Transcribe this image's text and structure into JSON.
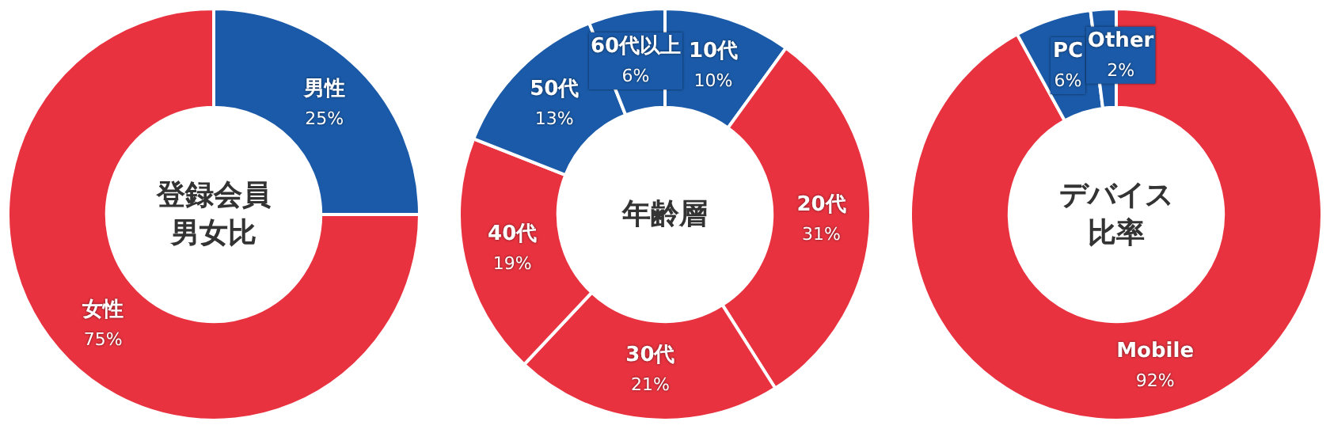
{
  "chart_data": [
    {
      "type": "donut",
      "title": "登録会員男女比",
      "categories": [
        "男性",
        "女性"
      ],
      "values": [
        25,
        75
      ],
      "colors": [
        "#1a5aa8",
        "#e8323f"
      ],
      "value_labels": [
        "25%",
        "75%"
      ],
      "legend": false
    },
    {
      "type": "donut",
      "title": "年齢層",
      "categories": [
        "10代",
        "20代",
        "30代",
        "40代",
        "50代",
        "60代以上"
      ],
      "values": [
        10,
        31,
        21,
        19,
        13,
        6
      ],
      "colors": [
        "#1a5aa8",
        "#e8323f",
        "#e8323f",
        "#e8323f",
        "#1a5aa8",
        "#1a5aa8"
      ],
      "value_labels": [
        "10%",
        "31%",
        "21%",
        "19%",
        "13%",
        "6%"
      ],
      "legend": false
    },
    {
      "type": "donut",
      "title": "デバイス比率",
      "categories": [
        "Mobile",
        "PC",
        "Other"
      ],
      "values": [
        92,
        6,
        2
      ],
      "colors": [
        "#e8323f",
        "#1a5aa8",
        "#1a5aa8"
      ],
      "value_labels": [
        "92%",
        "6%",
        "2%"
      ],
      "legend": false
    }
  ]
}
